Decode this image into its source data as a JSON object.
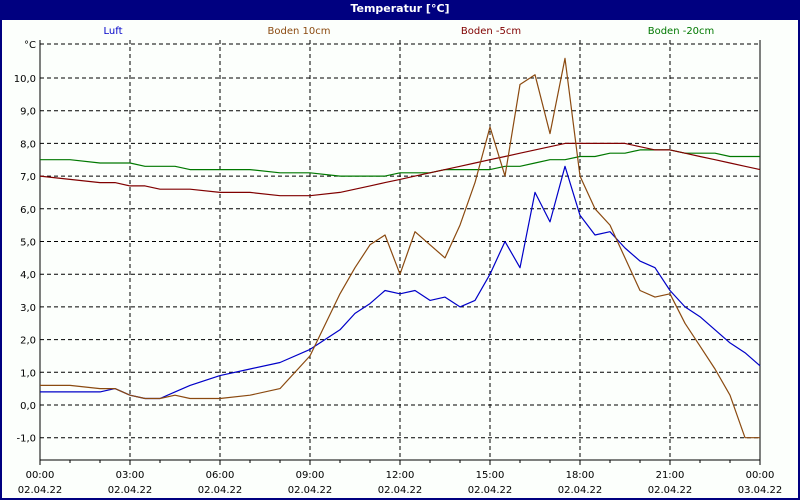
{
  "window": {
    "title": "Temperatur [°C]"
  },
  "legend": [
    {
      "label": "Luft",
      "color": "#0000c8"
    },
    {
      "label": "Boden 10cm",
      "color": "#8b4a10"
    },
    {
      "label": "Boden -5cm",
      "color": "#800000"
    },
    {
      "label": "Boden -20cm",
      "color": "#007800"
    }
  ],
  "chart_data": {
    "type": "line",
    "title": "Temperatur [°C]",
    "ylabel": "°C",
    "xlabel": "",
    "ylim": [
      -1.7,
      11.1
    ],
    "yticks": [
      "10,0",
      "9,0",
      "8,0",
      "7,0",
      "6,0",
      "5,0",
      "4,0",
      "3,0",
      "2,0",
      "1,0",
      "0,0",
      "-1,0"
    ],
    "xticks": [
      {
        "time": "00:00",
        "date": "02.04.22"
      },
      {
        "time": "03:00",
        "date": "02.04.22"
      },
      {
        "time": "06:00",
        "date": "02.04.22"
      },
      {
        "time": "09:00",
        "date": "02.04.22"
      },
      {
        "time": "12:00",
        "date": "02.04.22"
      },
      {
        "time": "15:00",
        "date": "02.04.22"
      },
      {
        "time": "18:00",
        "date": "02.04.22"
      },
      {
        "time": "21:00",
        "date": "02.04.22"
      },
      {
        "time": "00:00",
        "date": "03.04.22"
      }
    ],
    "grid": true,
    "legend_position": "top",
    "x_hours": [
      0,
      1,
      2,
      2.5,
      3,
      3.5,
      4,
      4.5,
      5,
      6,
      7,
      8,
      9,
      10,
      10.5,
      11,
      11.5,
      12,
      12.5,
      13,
      13.5,
      14,
      14.5,
      15,
      15.5,
      16,
      16.5,
      17,
      17.5,
      18,
      18.5,
      19,
      19.5,
      20,
      20.5,
      21,
      21.5,
      22,
      22.5,
      23,
      23.5,
      24
    ],
    "series": [
      {
        "name": "Luft",
        "color": "#0000c8",
        "values": [
          0.4,
          0.4,
          0.4,
          0.5,
          0.3,
          0.2,
          0.2,
          0.4,
          0.6,
          0.9,
          1.1,
          1.3,
          1.7,
          2.3,
          2.8,
          3.1,
          3.5,
          3.4,
          3.5,
          3.2,
          3.3,
          3.0,
          3.2,
          4.0,
          5.0,
          4.2,
          6.5,
          5.6,
          7.3,
          5.8,
          5.2,
          5.3,
          4.8,
          4.4,
          4.2,
          3.5,
          3.0,
          2.7,
          2.3,
          1.9,
          1.6,
          1.2
        ]
      },
      {
        "name": "Boden 10cm",
        "color": "#8b4a10",
        "values": [
          0.6,
          0.6,
          0.5,
          0.5,
          0.3,
          0.2,
          0.2,
          0.3,
          0.2,
          0.2,
          0.3,
          0.5,
          1.5,
          3.4,
          4.2,
          4.9,
          5.2,
          4.0,
          5.3,
          4.9,
          4.5,
          5.5,
          6.8,
          8.5,
          7.0,
          9.8,
          10.1,
          8.3,
          10.6,
          7.0,
          6.0,
          5.5,
          4.5,
          3.5,
          3.3,
          3.4,
          2.5,
          1.8,
          1.1,
          0.3,
          -1.0,
          -1.0
        ]
      },
      {
        "name": "Boden -5cm",
        "color": "#800000",
        "values": [
          7.0,
          6.9,
          6.8,
          6.8,
          6.7,
          6.7,
          6.6,
          6.6,
          6.6,
          6.5,
          6.5,
          6.4,
          6.4,
          6.5,
          6.6,
          6.7,
          6.8,
          6.9,
          7.0,
          7.1,
          7.2,
          7.3,
          7.4,
          7.5,
          7.6,
          7.7,
          7.8,
          7.9,
          8.0,
          8.0,
          8.0,
          8.0,
          8.0,
          7.9,
          7.8,
          7.8,
          7.7,
          7.6,
          7.5,
          7.4,
          7.3,
          7.2
        ]
      },
      {
        "name": "Boden -20cm",
        "color": "#007800",
        "values": [
          7.5,
          7.5,
          7.4,
          7.4,
          7.4,
          7.3,
          7.3,
          7.3,
          7.2,
          7.2,
          7.2,
          7.1,
          7.1,
          7.0,
          7.0,
          7.0,
          7.0,
          7.1,
          7.1,
          7.1,
          7.2,
          7.2,
          7.2,
          7.2,
          7.3,
          7.3,
          7.4,
          7.5,
          7.5,
          7.6,
          7.6,
          7.7,
          7.7,
          7.8,
          7.8,
          7.8,
          7.7,
          7.7,
          7.7,
          7.6,
          7.6,
          7.6
        ]
      }
    ]
  }
}
